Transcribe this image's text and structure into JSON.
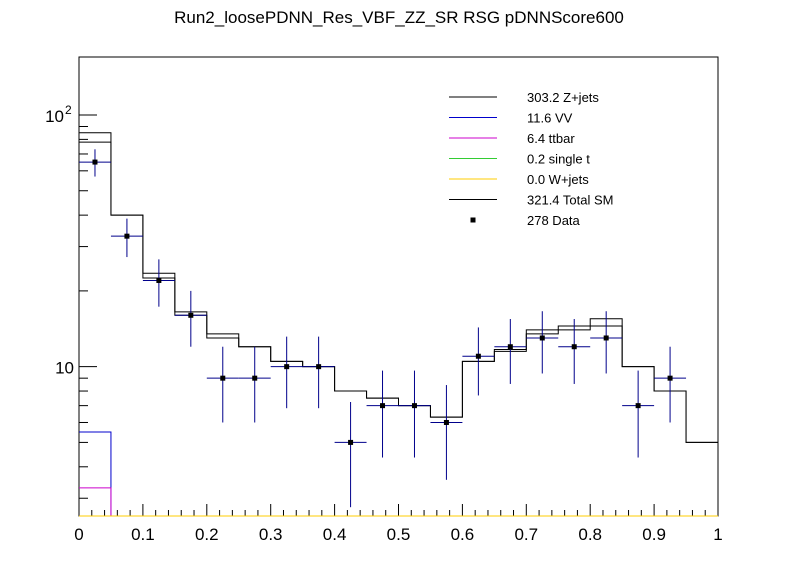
{
  "chart_data": {
    "type": "histogram",
    "title": "Run2_loosePDNN_Res_VBF_ZZ_SR RSG  pDNNScore600",
    "xlabel": "",
    "ylabel": "",
    "xlim": [
      0,
      1
    ],
    "ylim": [
      2.55,
      170
    ],
    "yscale": "log",
    "x_ticks": [
      "0",
      "0.1",
      "0.2",
      "0.3",
      "0.4",
      "0.5",
      "0.6",
      "0.7",
      "0.8",
      "0.9",
      "1"
    ],
    "x_tick_values": [
      0,
      0.1,
      0.2,
      0.3,
      0.4,
      0.5,
      0.6,
      0.7,
      0.8,
      0.9,
      1
    ],
    "y_ticks": [
      {
        "value": 10,
        "label": "10"
      },
      {
        "value": 100,
        "label": "10",
        "exp": "2"
      }
    ],
    "bin_edges": [
      0,
      0.05,
      0.1,
      0.15,
      0.2,
      0.25,
      0.3,
      0.35,
      0.4,
      0.45,
      0.5,
      0.55,
      0.6,
      0.65,
      0.7,
      0.75,
      0.8,
      0.85,
      0.9,
      0.95,
      1
    ],
    "series": [
      {
        "name": "Z+jets",
        "total": "303.2",
        "color": "#000000",
        "values": [
          78,
          40,
          22.5,
          16,
          13,
          12,
          10.5,
          10,
          8,
          7.5,
          7,
          6.3,
          10.5,
          11.5,
          13.5,
          14,
          14.5,
          10,
          8,
          5
        ]
      },
      {
        "name": "VV",
        "total": "11.6",
        "color": "#0000cc",
        "values": [
          5.5,
          0,
          0,
          0,
          0,
          0,
          0,
          0,
          0,
          0,
          0,
          0,
          0,
          0,
          0,
          0,
          0,
          0,
          0,
          0
        ]
      },
      {
        "name": "ttbar",
        "total": "6.4",
        "color": "#cc00cc",
        "values": [
          3.3,
          0,
          0,
          0,
          0,
          0,
          0,
          0,
          0,
          0,
          0,
          0,
          0,
          0,
          0,
          0,
          0,
          0,
          0,
          0
        ]
      },
      {
        "name": "single t",
        "total": "0.2",
        "color": "#33cc33",
        "values": [
          0,
          0,
          0,
          0,
          0,
          0,
          0,
          0,
          0,
          0,
          0,
          0,
          0,
          0,
          0,
          0,
          0,
          0,
          0,
          0
        ]
      },
      {
        "name": "W+jets",
        "total": "0.0",
        "color": "#ffcc00",
        "values": [
          0,
          0,
          0,
          0,
          0,
          0,
          0,
          0,
          0,
          0,
          0,
          0,
          0,
          0,
          0,
          0,
          0,
          0,
          0,
          0
        ]
      },
      {
        "name": "Total SM",
        "total": "321.4",
        "color": "#000000",
        "values": [
          85,
          40,
          23.5,
          16.5,
          13.5,
          12,
          10.5,
          10,
          8,
          7.5,
          7,
          6.3,
          10.5,
          11.7,
          14,
          14.5,
          15.5,
          10,
          8,
          5
        ]
      }
    ],
    "data": {
      "name": "Data",
      "total": "278",
      "color": "#000000",
      "x": [
        0.025,
        0.075,
        0.125,
        0.175,
        0.225,
        0.275,
        0.325,
        0.375,
        0.425,
        0.475,
        0.525,
        0.575,
        0.625,
        0.675,
        0.725,
        0.775,
        0.825,
        0.875,
        0.925
      ],
      "y": [
        65,
        33,
        22,
        16,
        9,
        9,
        10,
        10,
        5,
        7,
        7,
        6,
        11,
        12,
        13,
        12,
        13,
        7,
        9
      ]
    },
    "legend": {
      "placement": "top-right",
      "entries": [
        {
          "label": "303.2 Z+jets",
          "color": "#000000",
          "marker": "line"
        },
        {
          "label": "11.6 VV",
          "color": "#0000cc",
          "marker": "line"
        },
        {
          "label": "6.4 ttbar",
          "color": "#cc00cc",
          "marker": "line"
        },
        {
          "label": "0.2 single t",
          "color": "#33cc33",
          "marker": "line"
        },
        {
          "label": "0.0 W+jets",
          "color": "#ffcc00",
          "marker": "line"
        },
        {
          "label": "321.4 Total SM",
          "color": "#000000",
          "marker": "line"
        },
        {
          "label": "278 Data",
          "color": "#000000",
          "marker": "point"
        }
      ]
    }
  }
}
